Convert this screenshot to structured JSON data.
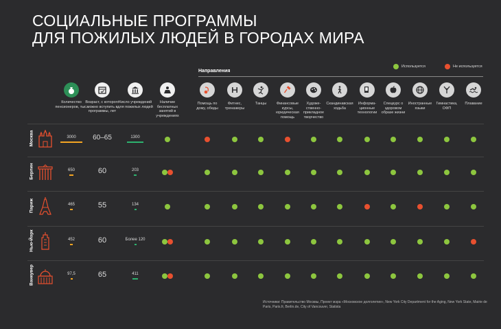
{
  "title": {
    "line1": "СОЦИАЛЬНЫЕ ПРОГРАММЫ",
    "line2": "ДЛЯ ПОЖИЛЫХ ЛЮДЕЙ В ГОРОДАХ МИРА"
  },
  "directions_header": "Направления",
  "legend": {
    "used": "Используется",
    "not_used": "Не используется"
  },
  "colors": {
    "used": "#8dc63f",
    "not_used": "#e8502f",
    "bar_pensioners": "#f5a623",
    "bar_institutions": "#2db36f",
    "icon_accent": "#e8502f"
  },
  "left_columns": [
    {
      "label": "Количество пенсионеров, тыс.",
      "icon": "money-bag-icon"
    },
    {
      "label": "Возраст, с которого можно вступить в программы, лет",
      "icon": "calendar-icon"
    },
    {
      "label": "Число учреждений для пожилых людей",
      "icon": "institution-icon"
    },
    {
      "label": "Наличие бесплатных занятий в учреждениях",
      "icon": "free-classes-icon"
    }
  ],
  "directions": [
    {
      "label": "Помощь по дому, обеды",
      "icon": "vacuum-cleaner-icon"
    },
    {
      "label": "Фитнес, тренажеры",
      "icon": "dumbbell-icon"
    },
    {
      "label": "Танцы",
      "icon": "dance-icon"
    },
    {
      "label": "Финансовые курсы, юридическая помощь",
      "icon": "gavel-icon"
    },
    {
      "label": "Художе-ственно-прикладное творчество",
      "icon": "palette-icon"
    },
    {
      "label": "Скандинавская ходьба",
      "icon": "walking-icon"
    },
    {
      "label": "Информа-ционные технологии",
      "icon": "computer-icon"
    },
    {
      "label": "Спецкурс о здоровом образе жизни",
      "icon": "apple-icon"
    },
    {
      "label": "Иностранные языки",
      "icon": "globe-icon"
    },
    {
      "label": "Гимнастика, ОФП",
      "icon": "gymnastics-icon"
    },
    {
      "label": "Плавание",
      "icon": "swimming-icon"
    }
  ],
  "cities": [
    {
      "name": "Москва",
      "icon": "kremlin-icon",
      "pensioners": "3000",
      "pensioners_value": 3000,
      "age": "60–65",
      "institutions": "1300",
      "institutions_value": 1300,
      "free_classes": [
        "used"
      ],
      "directions": [
        "not_used",
        "used",
        "used",
        "not_used",
        "used",
        "used",
        "used",
        "used",
        "used",
        "used",
        "used"
      ]
    },
    {
      "name": "Берлин",
      "icon": "brandenburg-gate-icon",
      "pensioners": "650",
      "pensioners_value": 650,
      "age": "60",
      "institutions": "203",
      "institutions_value": 203,
      "free_classes": [
        "used",
        "not_used"
      ],
      "directions": [
        "used",
        "used",
        "used",
        "used",
        "used",
        "used",
        "used",
        "used",
        "used",
        "used",
        "used"
      ]
    },
    {
      "name": "Париж",
      "icon": "eiffel-tower-icon",
      "pensioners": "465",
      "pensioners_value": 465,
      "age": "55",
      "institutions": "134",
      "institutions_value": 134,
      "free_classes": [
        "used"
      ],
      "directions": [
        "used",
        "used",
        "used",
        "used",
        "used",
        "used",
        "not_used",
        "used",
        "not_used",
        "used",
        "used"
      ]
    },
    {
      "name": "Нью-Йорк",
      "icon": "skyscraper-icon",
      "pensioners": "452",
      "pensioners_value": 452,
      "age": "60",
      "institutions": "Более 120",
      "institutions_value": 120,
      "free_classes": [
        "used",
        "not_used"
      ],
      "directions": [
        "used",
        "used",
        "used",
        "used",
        "used",
        "used",
        "used",
        "used",
        "used",
        "used",
        "not_used"
      ]
    },
    {
      "name": "Ванкувер",
      "icon": "dome-building-icon",
      "pensioners": "97,5",
      "pensioners_value": 97.5,
      "age": "65",
      "institutions": "411",
      "institutions_value": 411,
      "free_classes": [
        "used",
        "not_used"
      ],
      "directions": [
        "used",
        "used",
        "used",
        "used",
        "used",
        "used",
        "used",
        "used",
        "used",
        "used",
        "used"
      ]
    }
  ],
  "sources": "Источники: Правительство Москвы, Проект мэра «Московское долголетие», New York City Department for the Aging, New York State, Mairie de Paris, Paris.fr, Berlin.de, City of Vancouver, Statista"
}
